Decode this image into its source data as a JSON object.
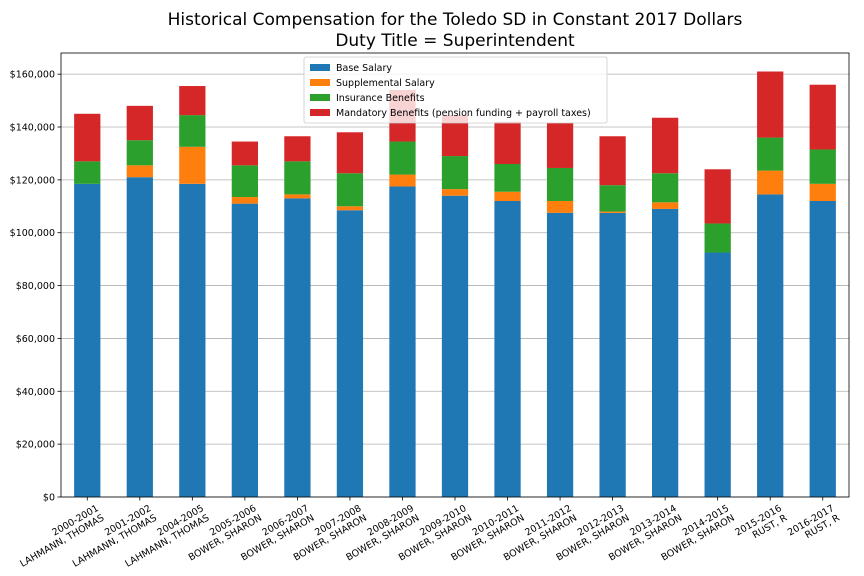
{
  "chart_data": {
    "type": "bar",
    "stacked": true,
    "title": "Historical Compensation for the Toledo SD in Constant 2017 Dollars",
    "subtitle": "Duty Title = Superintendent",
    "xlabel": "",
    "ylabel": "",
    "ylim": [
      0,
      168000
    ],
    "y_ticks": [
      0,
      20000,
      40000,
      60000,
      80000,
      100000,
      120000,
      140000,
      160000
    ],
    "y_tick_labels": [
      "$0",
      "$20,000",
      "$40,000",
      "$60,000",
      "$80,000",
      "$100,000",
      "$120,000",
      "$140,000",
      "$160,000"
    ],
    "grid": "horizontal",
    "legend_position": "top-center",
    "categories": [
      [
        "2000-2001",
        "LAHMANN, THOMAS"
      ],
      [
        "2001-2002",
        "LAHMANN, THOMAS"
      ],
      [
        "2004-2005",
        "LAHMANN, THOMAS"
      ],
      [
        "2005-2006",
        "BOWER, SHARON"
      ],
      [
        "2006-2007",
        "BOWER, SHARON"
      ],
      [
        "2007-2008",
        "BOWER, SHARON"
      ],
      [
        "2008-2009",
        "BOWER, SHARON"
      ],
      [
        "2009-2010",
        "BOWER, SHARON"
      ],
      [
        "2010-2011",
        "BOWER, SHARON"
      ],
      [
        "2011-2012",
        "BOWER, SHARON"
      ],
      [
        "2012-2013",
        "BOWER, SHARON"
      ],
      [
        "2013-2014",
        "BOWER, SHARON"
      ],
      [
        "2014-2015",
        "BOWER, SHARON"
      ],
      [
        "2015-2016",
        "RUST, R"
      ],
      [
        "2016-2017",
        "RUST, R"
      ]
    ],
    "series": [
      {
        "name": "Base Salary",
        "color": "#1f77b4",
        "values": [
          118500,
          121000,
          118500,
          111000,
          113000,
          108500,
          117500,
          114000,
          112000,
          107500,
          107500,
          109000,
          92500,
          114500,
          112000
        ]
      },
      {
        "name": "Supplemental Salary",
        "color": "#ff7f0e",
        "values": [
          0,
          4500,
          14000,
          2500,
          1500,
          1500,
          4500,
          2500,
          3500,
          4500,
          500,
          2500,
          0,
          9000,
          6500
        ]
      },
      {
        "name": "Insurance Benefits",
        "color": "#2ca02c",
        "values": [
          8500,
          9500,
          12000,
          12000,
          12500,
          12500,
          12500,
          12500,
          10500,
          12500,
          10000,
          11000,
          11000,
          12500,
          13000
        ]
      },
      {
        "name": "Mandatory Benefits (pension funding + payroll taxes)",
        "color": "#d62728",
        "values": [
          18000,
          13000,
          11000,
          9000,
          9500,
          15500,
          19500,
          15500,
          16000,
          17000,
          18500,
          21000,
          20500,
          25000,
          24500
        ]
      }
    ]
  }
}
